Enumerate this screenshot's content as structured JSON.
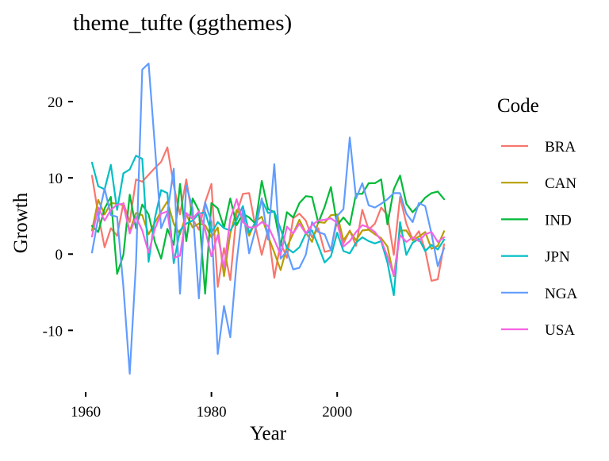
{
  "chart_data": {
    "type": "line",
    "title": "theme_tufte (ggthemes)",
    "xlabel": "Year",
    "ylabel": "Growth",
    "xlim": [
      1961,
      2017
    ],
    "ylim": [
      -16,
      25
    ],
    "x_ticks": [
      1960,
      1980,
      2000
    ],
    "y_ticks": [
      -10,
      0,
      10,
      20
    ],
    "grid": false,
    "legend": {
      "title": "Code",
      "position": "right"
    },
    "x": [
      1961,
      1962,
      1963,
      1964,
      1965,
      1966,
      1967,
      1968,
      1969,
      1970,
      1971,
      1972,
      1973,
      1974,
      1975,
      1976,
      1977,
      1978,
      1979,
      1980,
      1981,
      1982,
      1983,
      1984,
      1985,
      1986,
      1987,
      1988,
      1989,
      1990,
      1991,
      1992,
      1993,
      1994,
      1995,
      1996,
      1997,
      1998,
      1999,
      2000,
      2001,
      2002,
      2003,
      2004,
      2005,
      2006,
      2007,
      2008,
      2009,
      2010,
      2011,
      2012,
      2013,
      2014,
      2015,
      2016,
      2017
    ],
    "series": [
      {
        "name": "BRA",
        "color": "#F8766D",
        "values": [
          10.3,
          5.2,
          0.9,
          3.4,
          2.4,
          6.7,
          4.2,
          9.8,
          9.5,
          10.4,
          11.3,
          12.1,
          14.0,
          9.0,
          5.2,
          9.8,
          4.6,
          3.2,
          6.8,
          9.2,
          -4.3,
          0.8,
          -3.4,
          5.3,
          7.9,
          8.0,
          3.6,
          -0.1,
          3.2,
          -3.1,
          1.5,
          -0.5,
          4.7,
          5.3,
          4.4,
          2.2,
          3.4,
          0.3,
          0.5,
          4.4,
          1.4,
          3.1,
          1.1,
          5.8,
          3.2,
          4.0,
          6.1,
          5.1,
          -0.1,
          7.5,
          4.0,
          1.9,
          3.0,
          0.5,
          -3.5,
          -3.3,
          1.3
        ]
      },
      {
        "name": "CAN",
        "color": "#B79F00",
        "values": [
          3.1,
          7.1,
          5.2,
          6.7,
          6.6,
          6.4,
          3.0,
          5.4,
          5.1,
          2.6,
          4.1,
          5.6,
          6.9,
          4.0,
          2.6,
          5.2,
          3.5,
          4.0,
          3.8,
          2.2,
          3.5,
          -2.9,
          2.7,
          5.8,
          4.8,
          2.4,
          4.3,
          4.9,
          2.4,
          0.2,
          -2.1,
          0.9,
          2.7,
          4.5,
          2.8,
          1.6,
          4.2,
          4.1,
          5.1,
          5.2,
          1.8,
          3.0,
          1.8,
          3.1,
          3.2,
          2.6,
          2.1,
          1.0,
          -2.9,
          3.1,
          3.1,
          1.8,
          2.3,
          2.9,
          0.7,
          1.1,
          3.0
        ]
      },
      {
        "name": "IND",
        "color": "#00BA38",
        "values": [
          3.7,
          2.9,
          6.0,
          7.5,
          -2.6,
          -0.1,
          7.8,
          3.4,
          6.5,
          5.2,
          1.6,
          -0.6,
          3.3,
          1.2,
          9.2,
          1.7,
          7.3,
          5.7,
          -5.2,
          6.7,
          6.0,
          3.5,
          7.3,
          3.8,
          5.3,
          4.8,
          4.0,
          9.6,
          5.9,
          5.5,
          1.1,
          5.5,
          4.8,
          6.7,
          7.6,
          7.5,
          4.1,
          6.2,
          8.8,
          3.8,
          4.8,
          3.8,
          7.9,
          7.9,
          9.3,
          9.3,
          9.8,
          3.9,
          8.5,
          10.3,
          6.6,
          5.5,
          6.4,
          7.4,
          8.0,
          8.2,
          7.2
        ]
      },
      {
        "name": "JPN",
        "color": "#00BFC4",
        "values": [
          12.0,
          8.9,
          8.5,
          11.7,
          5.8,
          10.6,
          11.1,
          12.9,
          12.5,
          -1.0,
          4.7,
          8.4,
          8.0,
          -1.2,
          3.1,
          4.0,
          4.4,
          5.3,
          5.5,
          2.8,
          4.2,
          3.4,
          3.1,
          4.5,
          6.3,
          2.8,
          4.1,
          7.1,
          5.4,
          5.6,
          3.3,
          0.8,
          0.2,
          0.9,
          2.7,
          3.1,
          1.1,
          -1.1,
          -0.3,
          2.8,
          0.4,
          0.1,
          1.5,
          2.2,
          1.7,
          1.4,
          1.7,
          -1.1,
          -5.4,
          4.2,
          -0.1,
          1.5,
          2.0,
          0.4,
          1.2,
          0.6,
          1.9
        ]
      },
      {
        "name": "NGA",
        "color": "#619CFF",
        "values": [
          0.2,
          4.8,
          8.6,
          5.1,
          4.9,
          -4.3,
          -15.7,
          -1.2,
          24.2,
          25.0,
          14.2,
          3.4,
          5.4,
          11.2,
          -5.2,
          9.0,
          6.0,
          -5.8,
          6.8,
          4.2,
          -13.1,
          -6.8,
          -10.9,
          -1.1,
          5.9,
          0.1,
          3.2,
          7.3,
          1.9,
          11.8,
          -0.6,
          0.4,
          -2.0,
          -1.8,
          -0.1,
          4.2,
          2.9,
          2.6,
          0.5,
          5.0,
          5.9,
          15.3,
          7.3,
          9.3,
          6.4,
          6.1,
          6.6,
          7.2,
          8.0,
          8.0,
          5.3,
          4.2,
          6.7,
          6.3,
          2.7,
          -1.6,
          0.8
        ]
      },
      {
        "name": "USA",
        "color": "#F564E3",
        "values": [
          2.3,
          6.1,
          4.4,
          5.8,
          6.5,
          6.6,
          2.7,
          4.9,
          3.1,
          0.2,
          3.3,
          5.3,
          5.6,
          -0.5,
          -0.2,
          5.4,
          4.6,
          5.6,
          3.2,
          -0.3,
          2.5,
          -1.8,
          4.6,
          7.2,
          4.2,
          3.5,
          3.5,
          4.2,
          3.7,
          1.9,
          -0.1,
          3.6,
          2.7,
          4.0,
          2.7,
          3.8,
          4.4,
          4.5,
          4.7,
          4.1,
          1.0,
          1.7,
          2.9,
          3.8,
          3.5,
          2.9,
          1.8,
          -0.3,
          -2.8,
          2.5,
          1.6,
          2.2,
          1.7,
          2.6,
          2.9,
          1.6,
          2.2
        ]
      }
    ]
  }
}
